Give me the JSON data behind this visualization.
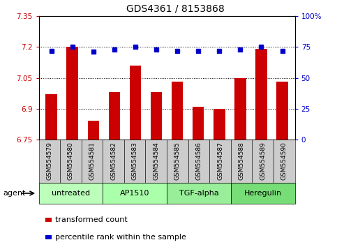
{
  "title": "GDS4361 / 8153868",
  "samples": [
    "GSM554579",
    "GSM554580",
    "GSM554581",
    "GSM554582",
    "GSM554583",
    "GSM554584",
    "GSM554585",
    "GSM554586",
    "GSM554587",
    "GSM554588",
    "GSM554589",
    "GSM554590"
  ],
  "bar_values": [
    6.97,
    7.2,
    6.84,
    6.98,
    7.11,
    6.98,
    7.03,
    6.91,
    6.9,
    7.05,
    7.19,
    7.03
  ],
  "percentile_values": [
    72,
    75,
    71,
    73,
    75,
    73,
    72,
    72,
    72,
    73,
    75,
    72
  ],
  "ylim_left": [
    6.75,
    7.35
  ],
  "ylim_right": [
    0,
    100
  ],
  "yticks_left": [
    6.75,
    6.9,
    7.05,
    7.2,
    7.35
  ],
  "ytick_labels_left": [
    "6.75",
    "6.9",
    "7.05",
    "7.2",
    "7.35"
  ],
  "yticks_right": [
    0,
    25,
    50,
    75,
    100
  ],
  "ytick_labels_right": [
    "0",
    "25",
    "50",
    "75",
    "100%"
  ],
  "hlines": [
    6.9,
    7.05,
    7.2
  ],
  "bar_color": "#cc0000",
  "dot_color": "#0000cc",
  "agent_groups": [
    {
      "label": "untreated",
      "start": 0,
      "end": 3,
      "color": "#bbffbb"
    },
    {
      "label": "AP1510",
      "start": 3,
      "end": 6,
      "color": "#aaffaa"
    },
    {
      "label": "TGF-alpha",
      "start": 6,
      "end": 9,
      "color": "#99ee99"
    },
    {
      "label": "Heregulin",
      "start": 9,
      "end": 12,
      "color": "#77dd77"
    }
  ],
  "legend_items": [
    {
      "label": "transformed count",
      "color": "#cc0000"
    },
    {
      "label": "percentile rank within the sample",
      "color": "#0000cc"
    }
  ],
  "agent_label": "agent",
  "sample_box_color": "#cccccc",
  "title_fontsize": 10,
  "tick_fontsize": 7.5,
  "sample_fontsize": 6.5,
  "agent_fontsize": 8,
  "legend_fontsize": 8
}
